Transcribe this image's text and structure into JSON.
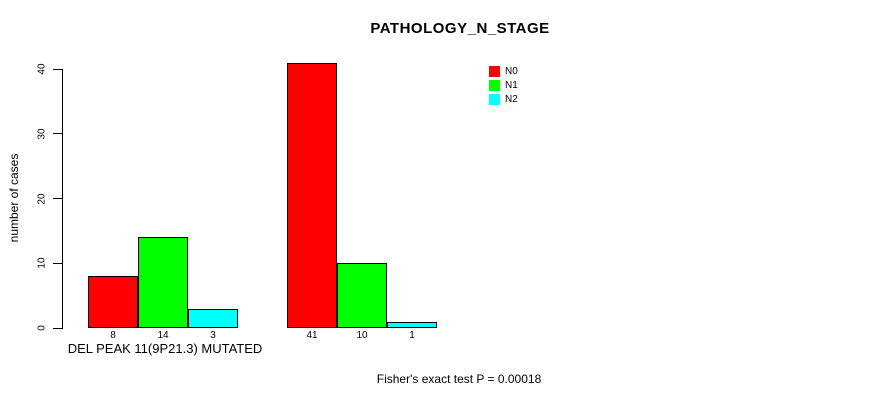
{
  "chart_data": {
    "type": "bar",
    "title": "PATHOLOGY_N_STAGE",
    "ylabel": "number of cases",
    "xlabel": "",
    "ylim": [
      0,
      40
    ],
    "yticks": [
      0,
      10,
      20,
      30,
      40
    ],
    "categories": [
      "DEL PEAK 11(9P21.3) MUTATED",
      ""
    ],
    "series": [
      {
        "name": "N0",
        "color": "#ff0000",
        "values": [
          8,
          41
        ]
      },
      {
        "name": "N1",
        "color": "#00ff00",
        "values": [
          14,
          10
        ]
      },
      {
        "name": "N2",
        "color": "#00ffff",
        "values": [
          3,
          1
        ]
      }
    ],
    "bar_value_labels": [
      [
        8,
        14,
        3
      ],
      [
        41,
        10,
        1
      ]
    ],
    "legend": {
      "position": "top-right",
      "entries": [
        "N0",
        "N1",
        "N2"
      ]
    },
    "grid": false,
    "footnote": "Fisher's exact test P = 0.00018"
  }
}
